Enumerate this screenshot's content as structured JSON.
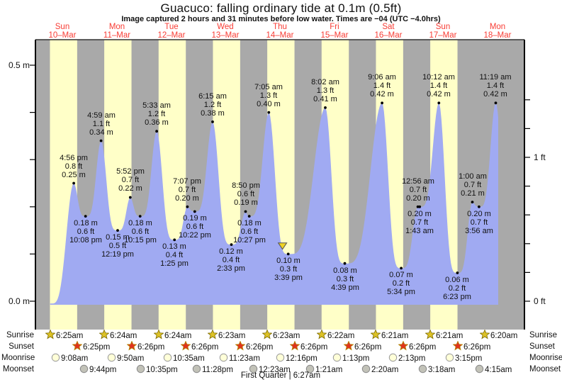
{
  "title": "Guacuco: falling  ordinary tide at 0.1m (0.5ft)",
  "subtitle": "Image captured 2 hours and 31 minutes before low water. Times are −04 (UTC −4.0hrs)",
  "days": [
    {
      "name": "Sun",
      "date": "10–Mar"
    },
    {
      "name": "Mon",
      "date": "11–Mar"
    },
    {
      "name": "Tue",
      "date": "12–Mar"
    },
    {
      "name": "Wed",
      "date": "13–Mar"
    },
    {
      "name": "Thu",
      "date": "14–Mar"
    },
    {
      "name": "Fri",
      "date": "15–Mar"
    },
    {
      "name": "Sat",
      "date": "16–Mar"
    },
    {
      "name": "Sun",
      "date": "17–Mar"
    },
    {
      "name": "Mon",
      "date": "18–Mar"
    }
  ],
  "y_axis": {
    "left_labels": [
      {
        "text": "0.5 m",
        "m": 0.5
      },
      {
        "text": "0.0 m",
        "m": 0.0
      }
    ],
    "right_labels": [
      {
        "text": "1 ft",
        "m": 0.3048
      },
      {
        "text": "0 ft",
        "m": 0.0
      }
    ]
  },
  "chart_data": {
    "type": "area",
    "title": "Guacuco: falling ordinary tide at 0.1m (0.5ft)",
    "x_axis_days": [
      "Sun 10-Mar",
      "Mon 11-Mar",
      "Tue 12-Mar",
      "Wed 13-Mar",
      "Thu 14-Mar",
      "Fri 15-Mar",
      "Sat 16-Mar",
      "Sun 17-Mar",
      "Mon 18-Mar"
    ],
    "y_axis_left": {
      "unit": "m",
      "labeled_ticks": [
        0.5,
        0.0
      ],
      "minor_step_m": 0.1
    },
    "y_axis_right": {
      "unit": "ft",
      "labeled_ticks": [
        1,
        0
      ],
      "minor_step_ft": 0.2
    },
    "day_band_legend": {
      "day": "yellow",
      "night": "gray"
    },
    "extremes": [
      {
        "kind": "high",
        "time": "4:56 pm",
        "ft": "0.8 ft",
        "m": "0.25 m",
        "day": 0,
        "hour": 16.93,
        "height_m": 0.25
      },
      {
        "kind": "low",
        "time": "10:08 pm",
        "ft": "0.6 ft",
        "m": "0.18 m",
        "day": 0,
        "hour": 22.13,
        "height_m": 0.18
      },
      {
        "kind": "high",
        "time": "4:59 am",
        "ft": "1.1 ft",
        "m": "0.34 m",
        "day": 1,
        "hour": 4.98,
        "height_m": 0.34
      },
      {
        "kind": "low",
        "time": "12:19 pm",
        "ft": "0.5 ft",
        "m": "0.15 m",
        "day": 1,
        "hour": 12.32,
        "height_m": 0.15
      },
      {
        "kind": "high",
        "time": "5:52 pm",
        "ft": "0.7 ft",
        "m": "0.22 m",
        "day": 1,
        "hour": 17.87,
        "height_m": 0.22
      },
      {
        "kind": "low",
        "time": "10:15 pm",
        "ft": "0.6 ft",
        "m": "0.18 m",
        "day": 1,
        "hour": 22.25,
        "height_m": 0.18
      },
      {
        "kind": "high",
        "time": "5:33 am",
        "ft": "1.2 ft",
        "m": "0.36 m",
        "day": 2,
        "hour": 5.55,
        "height_m": 0.36
      },
      {
        "kind": "low",
        "time": "1:25 pm",
        "ft": "0.4 ft",
        "m": "0.13 m",
        "day": 2,
        "hour": 13.42,
        "height_m": 0.13
      },
      {
        "kind": "high",
        "time": "7:07 pm",
        "ft": "0.7 ft",
        "m": "0.20 m",
        "day": 2,
        "hour": 19.12,
        "height_m": 0.2
      },
      {
        "kind": "low",
        "time": "10:22 pm",
        "ft": "0.6 ft",
        "m": "0.19 m",
        "day": 2,
        "hour": 22.37,
        "height_m": 0.19
      },
      {
        "kind": "high",
        "time": "6:15 am",
        "ft": "1.2 ft",
        "m": "0.38 m",
        "day": 3,
        "hour": 6.25,
        "height_m": 0.38
      },
      {
        "kind": "low",
        "time": "2:33 pm",
        "ft": "0.4 ft",
        "m": "0.12 m",
        "day": 3,
        "hour": 14.55,
        "height_m": 0.12
      },
      {
        "kind": "high",
        "time": "8:50 pm",
        "ft": "0.6 ft",
        "m": "0.19 m",
        "day": 3,
        "hour": 20.83,
        "height_m": 0.19
      },
      {
        "kind": "low",
        "time": "10:27 pm",
        "ft": "0.6 ft",
        "m": "0.18 m",
        "day": 3,
        "hour": 22.45,
        "height_m": 0.18
      },
      {
        "kind": "high",
        "time": "7:05 am",
        "ft": "1.3 ft",
        "m": "0.40 m",
        "day": 4,
        "hour": 7.08,
        "height_m": 0.4
      },
      {
        "kind": "low",
        "time": "3:39 pm",
        "ft": "0.3 ft",
        "m": "0.10 m",
        "day": 4,
        "hour": 15.65,
        "height_m": 0.1
      },
      {
        "kind": "high",
        "time": "8:02 am",
        "ft": "1.3 ft",
        "m": "0.41 m",
        "day": 5,
        "hour": 8.03,
        "height_m": 0.41
      },
      {
        "kind": "low",
        "time": "4:39 pm",
        "ft": "0.3 ft",
        "m": "0.08 m",
        "day": 5,
        "hour": 16.65,
        "height_m": 0.08
      },
      {
        "kind": "high",
        "time": "9:06 am",
        "ft": "1.4 ft",
        "m": "0.42 m",
        "day": 6,
        "hour": 9.1,
        "height_m": 0.42
      },
      {
        "kind": "low",
        "time": "5:34 pm",
        "ft": "0.2 ft",
        "m": "0.07 m",
        "day": 6,
        "hour": 17.57,
        "height_m": 0.07
      },
      {
        "kind": "high",
        "time": "12:56 am",
        "ft": "0.7 ft",
        "m": "0.20 m",
        "day": 7,
        "hour": 0.93,
        "height_m": 0.2
      },
      {
        "kind": "low",
        "time": "1:43 am",
        "ft": "0.7 ft",
        "m": "0.20 m",
        "day": 7,
        "hour": 1.72,
        "height_m": 0.2
      },
      {
        "kind": "high",
        "time": "10:12 am",
        "ft": "1.4 ft",
        "m": "0.42 m",
        "day": 7,
        "hour": 10.2,
        "height_m": 0.42
      },
      {
        "kind": "low",
        "time": "6:23 pm",
        "ft": "0.2 ft",
        "m": "0.06 m",
        "day": 7,
        "hour": 18.38,
        "height_m": 0.06
      },
      {
        "kind": "high",
        "time": "1:00 am",
        "ft": "0.7 ft",
        "m": "0.21 m",
        "day": 8,
        "hour": 1.0,
        "height_m": 0.21
      },
      {
        "kind": "low",
        "time": "3:56 am",
        "ft": "0.7 ft",
        "m": "0.20 m",
        "day": 8,
        "hour": 3.93,
        "height_m": 0.2
      },
      {
        "kind": "high",
        "time": "11:19 am",
        "ft": "1.4 ft",
        "m": "0.42 m",
        "day": 8,
        "hour": 11.32,
        "height_m": 0.42
      }
    ],
    "capture_marker": {
      "day": 4,
      "hour": 13.13
    }
  },
  "astro": {
    "rows": [
      {
        "label": "Sunrise",
        "icon": "sunrise-star-icon",
        "entries": [
          {
            "time": "6:25am",
            "day": 0,
            "hour": 6.42
          },
          {
            "time": "6:24am",
            "day": 1,
            "hour": 6.4
          },
          {
            "time": "6:24am",
            "day": 2,
            "hour": 6.4
          },
          {
            "time": "6:23am",
            "day": 3,
            "hour": 6.38
          },
          {
            "time": "6:23am",
            "day": 4,
            "hour": 6.38
          },
          {
            "time": "6:22am",
            "day": 5,
            "hour": 6.37
          },
          {
            "time": "6:21am",
            "day": 6,
            "hour": 6.35
          },
          {
            "time": "6:21am",
            "day": 7,
            "hour": 6.35
          },
          {
            "time": "6:20am",
            "day": 8,
            "hour": 6.33
          }
        ]
      },
      {
        "label": "Sunset",
        "icon": "sunset-star-icon",
        "entries": [
          {
            "time": "6:25pm",
            "day": 0,
            "hour": 18.42
          },
          {
            "time": "6:26pm",
            "day": 1,
            "hour": 18.43
          },
          {
            "time": "6:26pm",
            "day": 2,
            "hour": 18.43
          },
          {
            "time": "6:26pm",
            "day": 3,
            "hour": 18.43
          },
          {
            "time": "6:26pm",
            "day": 4,
            "hour": 18.43
          },
          {
            "time": "6:26pm",
            "day": 5,
            "hour": 18.43
          },
          {
            "time": "6:26pm",
            "day": 6,
            "hour": 18.43
          },
          {
            "time": "6:26pm",
            "day": 7,
            "hour": 18.43
          }
        ]
      },
      {
        "label": "Moonrise",
        "icon": "moonrise-icon",
        "entries": [
          {
            "time": "9:08am",
            "day": 0,
            "hour": 9.13
          },
          {
            "time": "9:50am",
            "day": 1,
            "hour": 9.83
          },
          {
            "time": "10:35am",
            "day": 2,
            "hour": 10.58
          },
          {
            "time": "11:23am",
            "day": 3,
            "hour": 11.38
          },
          {
            "time": "12:16pm",
            "day": 4,
            "hour": 12.27
          },
          {
            "time": "1:13pm",
            "day": 5,
            "hour": 13.22
          },
          {
            "time": "2:13pm",
            "day": 6,
            "hour": 14.22
          },
          {
            "time": "3:15pm",
            "day": 7,
            "hour": 15.25
          }
        ]
      },
      {
        "label": "Moonset",
        "icon": "moonset-icon",
        "entries": [
          {
            "time": "9:44pm",
            "day": 0,
            "hour": 21.73
          },
          {
            "time": "10:35pm",
            "day": 1,
            "hour": 22.58
          },
          {
            "time": "11:28pm",
            "day": 2,
            "hour": 23.47
          },
          {
            "time": "12:23am",
            "day": 4,
            "hour": 0.38
          },
          {
            "time": "1:21am",
            "day": 5,
            "hour": 1.35
          },
          {
            "time": "2:20am",
            "day": 6,
            "hour": 2.33
          },
          {
            "time": "3:18am",
            "day": 7,
            "hour": 3.3
          },
          {
            "time": "4:15am",
            "day": 8,
            "hour": 4.25
          }
        ]
      }
    ],
    "footer": "First Quarter | 6:27am"
  },
  "colors": {
    "band_day": "#ffffc8",
    "band_night": "#a9a9a9",
    "tide_fill": "#a0aaf2",
    "day_label_red": "#f83c34",
    "sunrise_star": "#ddc226",
    "sunset_star": "#e0321e",
    "moonrise_fill": "#ffffd8",
    "moonset_fill": "#c2c2b8",
    "marker_yellow": "#f0d322"
  }
}
